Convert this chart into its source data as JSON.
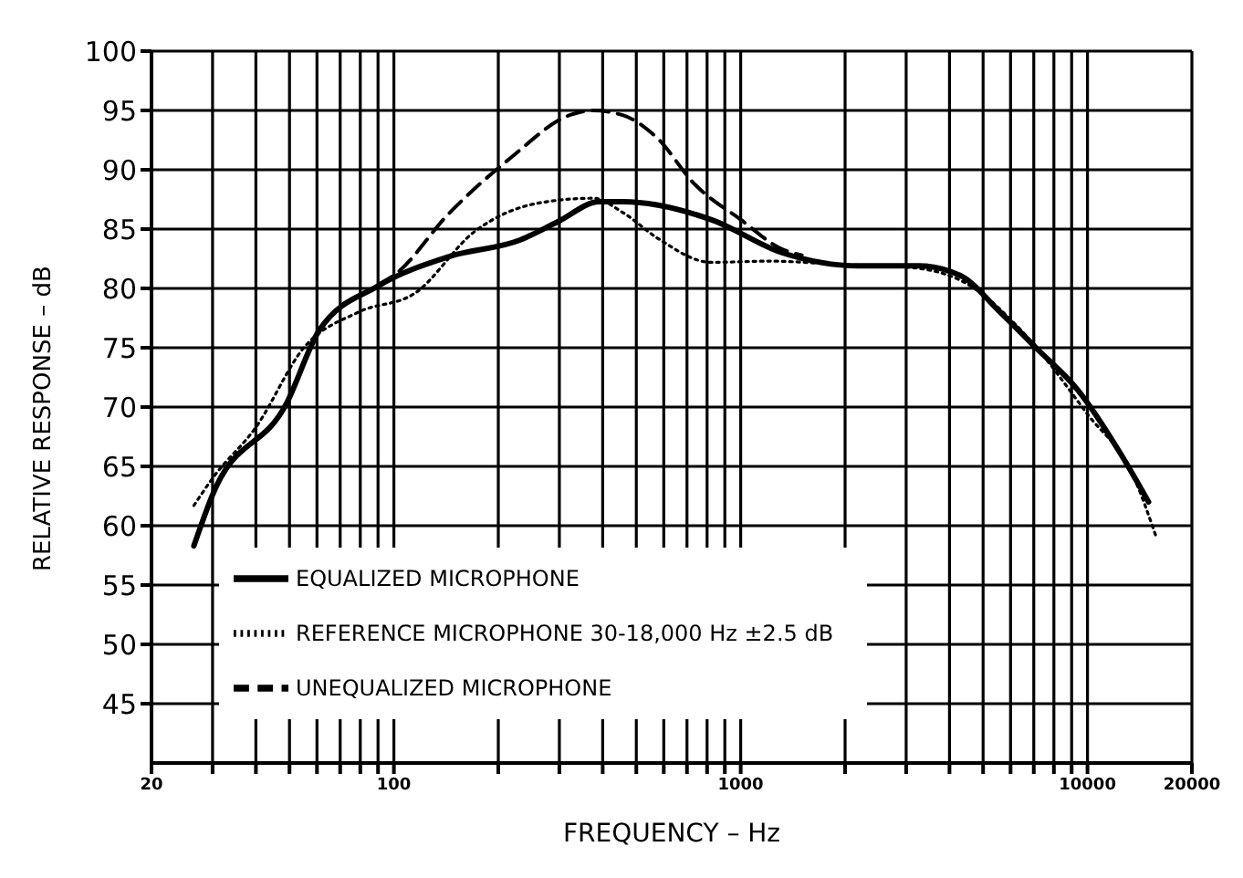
{
  "chart_data": {
    "type": "line",
    "xlabel": "FREQUENCY – Hz",
    "ylabel": "RELATIVE RESPONSE – dB",
    "log": "x",
    "grid": true,
    "legend": "bottom left",
    "marker": "none",
    "xlim": [
      20,
      20000
    ],
    "xticks": [
      20,
      {
        "value": 30,
        "label": null
      },
      {
        "value": 40,
        "label": null
      },
      {
        "value": 50,
        "label": null
      },
      {
        "value": 60,
        "label": null
      },
      {
        "value": 70,
        "label": null
      },
      {
        "value": 80,
        "label": null
      },
      {
        "value": 90,
        "label": null
      },
      100,
      {
        "value": 200,
        "label": null
      },
      {
        "value": 300,
        "label": null
      },
      {
        "value": 400,
        "label": null
      },
      {
        "value": 500,
        "label": null
      },
      {
        "value": 600,
        "label": null
      },
      {
        "value": 700,
        "label": null
      },
      {
        "value": 800,
        "label": null
      },
      {
        "value": 900,
        "label": null
      },
      1000,
      {
        "value": 2000,
        "label": null
      },
      {
        "value": 3000,
        "label": null
      },
      {
        "value": 4000,
        "label": null
      },
      {
        "value": 5000,
        "label": null
      },
      {
        "value": 6000,
        "label": null
      },
      {
        "value": 7000,
        "label": null
      },
      {
        "value": 8000,
        "label": null
      },
      {
        "value": 9000,
        "label": null
      },
      10000,
      20000
    ],
    "ylim": [
      40,
      100
    ],
    "yticks": [
      45,
      50,
      55,
      60,
      65,
      70,
      75,
      80,
      85,
      90,
      95,
      100
    ],
    "series": [
      {
        "name": "REFERENCE MICROPHONE 30-18,000 Hz ±2.5 dB",
        "color": "#000000",
        "line_style": "dotted",
        "x": [
          26.5,
          30,
          40,
          55,
          79,
          115,
          171,
          262,
          375,
          457,
          578,
          821,
          1210,
          2000,
          3000,
          4290,
          6660,
          10000,
          13600,
          15800
        ],
        "values": [
          61.7,
          64,
          68.3,
          75,
          78,
          79.6,
          84.8,
          87.2,
          87.6,
          86.4,
          84.2,
          82.2,
          82.3,
          82,
          81.8,
          80.7,
          76,
          69.4,
          64.1,
          59
        ]
      },
      {
        "name": "UNEQUALIZED MICROPHONE",
        "color": "#000000",
        "line_style": "dashed",
        "x": [
          90,
          100,
          145,
          217,
          321,
          375,
          457,
          578,
          730,
          1000,
          1318,
          1500
        ],
        "values": [
          80.3,
          81.1,
          86.4,
          91,
          94.6,
          95,
          94.6,
          92.6,
          88.9,
          85.8,
          83.3,
          82.8
        ]
      },
      {
        "name": "EQUALIZED MICROPHONE",
        "color": "#000000",
        "line_style": "solid",
        "x": [
          26.5,
          30,
          49,
          61,
          90,
          145,
          232,
          296,
          391,
          457,
          821,
          1318,
          2190,
          3280,
          4290,
          5600,
          7100,
          9400,
          12500,
          15000
        ],
        "values": [
          58.3,
          62.6,
          70.3,
          76.5,
          80.2,
          82.7,
          84.1,
          85.6,
          87.3,
          87.3,
          85.8,
          83,
          81.9,
          81.9,
          81.1,
          78,
          75,
          71.4,
          66,
          62
        ]
      }
    ]
  }
}
